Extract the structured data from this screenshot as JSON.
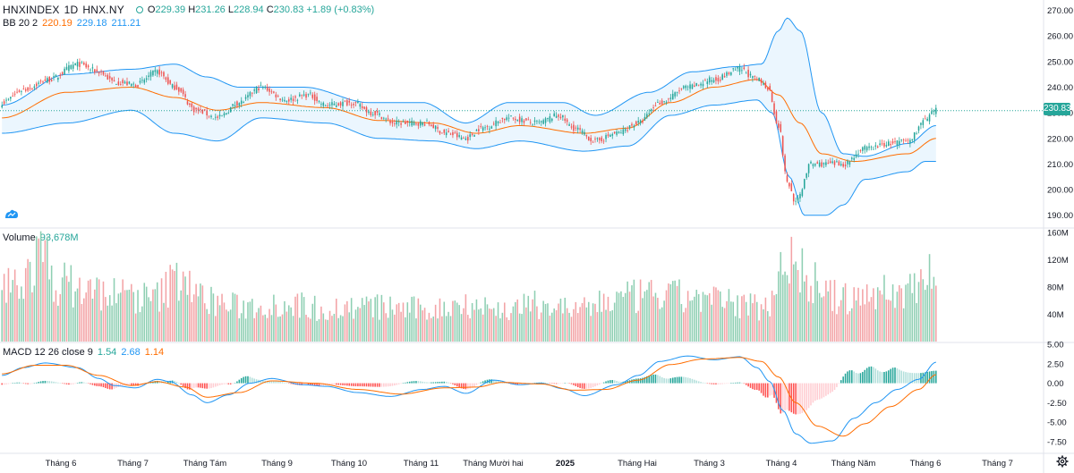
{
  "header": {
    "symbol": "HNXINDEX",
    "interval": "1D",
    "exchange": "HNX.NY",
    "open_label": "O",
    "open": "229.39",
    "high_label": "H",
    "high": "231.26",
    "low_label": "L",
    "low": "228.94",
    "close_label": "C",
    "close": "230.83",
    "change": "+1.89 (+0.83%)"
  },
  "bb_legend": {
    "name": "BB 20 2",
    "basis": "220.19",
    "upper": "229.18",
    "lower": "211.21"
  },
  "volume_legend": {
    "name": "Volume",
    "value": "93,678M"
  },
  "macd_legend": {
    "name": "MACD 12 26 close 9",
    "hist": "1.54",
    "macd": "2.68",
    "signal": "1.14"
  },
  "last_price_label": "230.83",
  "colors": {
    "up": "#26a69a",
    "down": "#ef5350",
    "up_vol": "#8fcfb3",
    "down_vol": "#f3a3a6",
    "bb_band": "#2196f3",
    "bb_basis": "#ff6d00",
    "bb_fill": "#e3f2fd",
    "macd_line": "#2196f3",
    "signal_line": "#ff6d00"
  },
  "chart_data": [
    {
      "type": "line",
      "panel": "price",
      "ylim": [
        185,
        273
      ],
      "yticks": [
        "270.00",
        "260.00",
        "250.00",
        "240.00",
        "230.00",
        "220.00",
        "210.00",
        "200.00",
        "190.00"
      ],
      "anchors": {
        "close": [
          [
            0,
            234
          ],
          [
            10,
            239
          ],
          [
            22,
            243
          ],
          [
            35,
            249
          ],
          [
            45,
            246
          ],
          [
            52,
            242
          ],
          [
            62,
            241
          ],
          [
            72,
            246
          ],
          [
            80,
            240
          ],
          [
            90,
            231
          ],
          [
            100,
            228
          ],
          [
            110,
            234
          ],
          [
            120,
            240
          ],
          [
            132,
            235
          ],
          [
            142,
            237
          ],
          [
            150,
            233
          ],
          [
            162,
            234
          ],
          [
            172,
            230
          ],
          [
            182,
            226
          ],
          [
            196,
            226
          ],
          [
            206,
            222
          ],
          [
            215,
            220
          ],
          [
            222,
            224
          ],
          [
            235,
            228
          ],
          [
            248,
            226
          ],
          [
            258,
            229
          ],
          [
            265,
            224
          ],
          [
            275,
            219
          ],
          [
            285,
            222
          ],
          [
            295,
            226
          ],
          [
            305,
            234
          ],
          [
            318,
            240
          ],
          [
            330,
            243
          ],
          [
            342,
            247
          ],
          [
            350,
            243
          ],
          [
            355,
            240
          ],
          [
            360,
            225
          ],
          [
            364,
            203
          ],
          [
            368,
            195
          ],
          [
            375,
            210
          ],
          [
            390,
            210
          ],
          [
            400,
            216
          ],
          [
            412,
            218
          ],
          [
            420,
            219
          ],
          [
            428,
            227
          ],
          [
            433,
            231
          ]
        ],
        "bb_upper": [
          [
            0,
            233
          ],
          [
            30,
            245
          ],
          [
            60,
            247
          ],
          [
            80,
            249
          ],
          [
            95,
            244
          ],
          [
            110,
            240
          ],
          [
            140,
            240
          ],
          [
            170,
            234
          ],
          [
            195,
            234
          ],
          [
            215,
            226
          ],
          [
            235,
            234
          ],
          [
            260,
            234
          ],
          [
            275,
            229
          ],
          [
            300,
            238
          ],
          [
            320,
            246
          ],
          [
            340,
            248
          ],
          [
            352,
            249
          ],
          [
            360,
            262
          ],
          [
            364,
            267
          ],
          [
            370,
            262
          ],
          [
            380,
            230
          ],
          [
            390,
            214
          ],
          [
            400,
            213
          ],
          [
            420,
            218
          ],
          [
            433,
            225
          ]
        ],
        "bb_lower": [
          [
            0,
            222
          ],
          [
            30,
            226
          ],
          [
            60,
            231
          ],
          [
            80,
            222
          ],
          [
            100,
            219
          ],
          [
            120,
            228
          ],
          [
            150,
            226
          ],
          [
            175,
            220
          ],
          [
            200,
            219
          ],
          [
            220,
            216
          ],
          [
            240,
            219
          ],
          [
            270,
            215
          ],
          [
            290,
            217
          ],
          [
            310,
            229
          ],
          [
            330,
            233
          ],
          [
            350,
            235
          ],
          [
            357,
            230
          ],
          [
            365,
            205
          ],
          [
            372,
            190
          ],
          [
            382,
            190
          ],
          [
            390,
            194
          ],
          [
            400,
            204
          ],
          [
            420,
            207
          ],
          [
            428,
            211
          ],
          [
            433,
            211
          ]
        ],
        "bb_basis": [
          [
            0,
            228
          ],
          [
            30,
            238
          ],
          [
            60,
            240
          ],
          [
            80,
            236
          ],
          [
            100,
            231
          ],
          [
            120,
            234
          ],
          [
            150,
            232
          ],
          [
            175,
            227
          ],
          [
            200,
            226
          ],
          [
            220,
            222
          ],
          [
            240,
            225
          ],
          [
            270,
            222
          ],
          [
            290,
            224
          ],
          [
            310,
            234
          ],
          [
            330,
            240
          ],
          [
            350,
            243
          ],
          [
            360,
            237
          ],
          [
            370,
            226
          ],
          [
            380,
            214
          ],
          [
            395,
            211
          ],
          [
            420,
            214
          ],
          [
            433,
            220
          ]
        ]
      }
    },
    {
      "type": "bar",
      "panel": "volume",
      "ylim": [
        0,
        165
      ],
      "yticks": [
        "160M",
        "120M",
        "80M",
        "40M"
      ],
      "anchors": [
        [
          0,
          85
        ],
        [
          8,
          95
        ],
        [
          15,
          120
        ],
        [
          18,
          140
        ],
        [
          25,
          95
        ],
        [
          40,
          80
        ],
        [
          55,
          75
        ],
        [
          70,
          68
        ],
        [
          85,
          110
        ],
        [
          90,
          70
        ],
        [
          110,
          55
        ],
        [
          130,
          60
        ],
        [
          150,
          52
        ],
        [
          170,
          55
        ],
        [
          200,
          50
        ],
        [
          215,
          62
        ],
        [
          230,
          50
        ],
        [
          250,
          58
        ],
        [
          270,
          50
        ],
        [
          280,
          65
        ],
        [
          300,
          72
        ],
        [
          320,
          70
        ],
        [
          340,
          60
        ],
        [
          355,
          55
        ],
        [
          362,
          140
        ],
        [
          368,
          120
        ],
        [
          375,
          95
        ],
        [
          385,
          70
        ],
        [
          395,
          65
        ],
        [
          405,
          80
        ],
        [
          415,
          75
        ],
        [
          425,
          95
        ],
        [
          430,
          120
        ],
        [
          433,
          94
        ]
      ]
    },
    {
      "type": "line",
      "panel": "macd",
      "ylim": [
        -9,
        5
      ],
      "yticks": [
        "5.00",
        "2.50",
        "0.00",
        "-2.50",
        "-5.00",
        "-7.50"
      ],
      "anchors": {
        "macd": [
          [
            0,
            1.0
          ],
          [
            10,
            2.0
          ],
          [
            20,
            2.6
          ],
          [
            35,
            2.0
          ],
          [
            45,
            0.6
          ],
          [
            52,
            -0.3
          ],
          [
            62,
            -0.6
          ],
          [
            72,
            0.5
          ],
          [
            78,
            0.2
          ],
          [
            88,
            -1.5
          ],
          [
            95,
            -2.5
          ],
          [
            105,
            -1.5
          ],
          [
            115,
            0.0
          ],
          [
            125,
            0.6
          ],
          [
            140,
            -0.2
          ],
          [
            150,
            -0.4
          ],
          [
            165,
            -1.2
          ],
          [
            180,
            -1.7
          ],
          [
            195,
            -0.8
          ],
          [
            205,
            -0.4
          ],
          [
            215,
            -1.3
          ],
          [
            228,
            0.4
          ],
          [
            240,
            -0.2
          ],
          [
            250,
            0.0
          ],
          [
            260,
            -0.7
          ],
          [
            270,
            -1.6
          ],
          [
            285,
            -0.2
          ],
          [
            295,
            1.0
          ],
          [
            305,
            2.8
          ],
          [
            318,
            3.5
          ],
          [
            330,
            3.0
          ],
          [
            342,
            3.4
          ],
          [
            350,
            2.0
          ],
          [
            356,
            0.2
          ],
          [
            362,
            -3.5
          ],
          [
            368,
            -6.5
          ],
          [
            375,
            -7.7
          ],
          [
            385,
            -7.4
          ],
          [
            395,
            -4.5
          ],
          [
            405,
            -2.5
          ],
          [
            415,
            -0.8
          ],
          [
            425,
            0.5
          ],
          [
            433,
            2.7
          ]
        ],
        "signal": [
          [
            0,
            1.2
          ],
          [
            15,
            2.3
          ],
          [
            30,
            2.3
          ],
          [
            45,
            1.0
          ],
          [
            60,
            -0.3
          ],
          [
            72,
            0.2
          ],
          [
            85,
            -0.5
          ],
          [
            95,
            -1.8
          ],
          [
            110,
            -1.2
          ],
          [
            125,
            0.3
          ],
          [
            145,
            0.0
          ],
          [
            165,
            -0.8
          ],
          [
            185,
            -1.4
          ],
          [
            205,
            -0.6
          ],
          [
            220,
            -0.5
          ],
          [
            232,
            0.1
          ],
          [
            250,
            -0.1
          ],
          [
            265,
            -0.9
          ],
          [
            280,
            -0.8
          ],
          [
            295,
            0.4
          ],
          [
            310,
            2.4
          ],
          [
            325,
            3.1
          ],
          [
            342,
            3.3
          ],
          [
            352,
            2.8
          ],
          [
            360,
            0.8
          ],
          [
            368,
            -2.5
          ],
          [
            378,
            -5.5
          ],
          [
            390,
            -6.8
          ],
          [
            400,
            -5.2
          ],
          [
            412,
            -3.0
          ],
          [
            425,
            -0.8
          ],
          [
            433,
            1.1
          ]
        ]
      }
    }
  ],
  "x_axis": {
    "labels": [
      "Tháng 6",
      "Tháng 7",
      "Tháng Tám",
      "Tháng 9",
      "Tháng 10",
      "Tháng 11",
      "Tháng Mười hai",
      "2025",
      "Tháng Hai",
      "Tháng 3",
      "Tháng 4",
      "Tháng Năm",
      "Tháng 6",
      "Tháng 7"
    ],
    "bold": "2025"
  }
}
